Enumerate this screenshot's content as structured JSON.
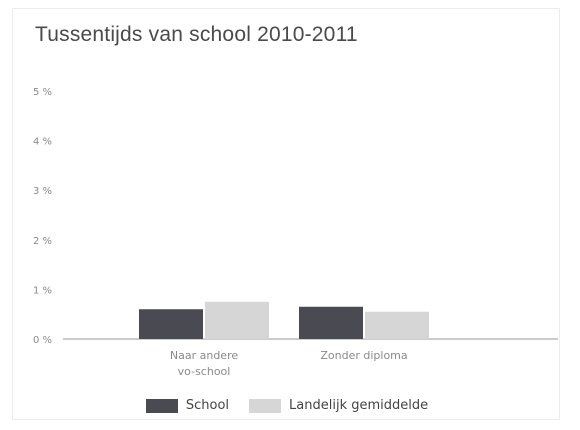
{
  "chart_data": {
    "type": "bar",
    "title": "Tussentijds van school 2010-2011",
    "categories": [
      [
        "Naar andere",
        "vo-school"
      ],
      [
        "Zonder diploma"
      ]
    ],
    "series": [
      {
        "name": "School",
        "values": [
          0.6,
          0.65
        ],
        "color": "#4a4a52"
      },
      {
        "name": "Landelijk gemiddelde",
        "values": [
          0.75,
          0.55
        ],
        "color": "#d6d6d6"
      }
    ],
    "ylim": [
      0,
      5
    ],
    "yticks": [
      0,
      1,
      2,
      3,
      4,
      5
    ],
    "ytick_labels": [
      "0 %",
      "1 %",
      "2 %",
      "3 %",
      "4 %",
      "5 %"
    ],
    "grid": false,
    "legend_position": "bottom"
  }
}
